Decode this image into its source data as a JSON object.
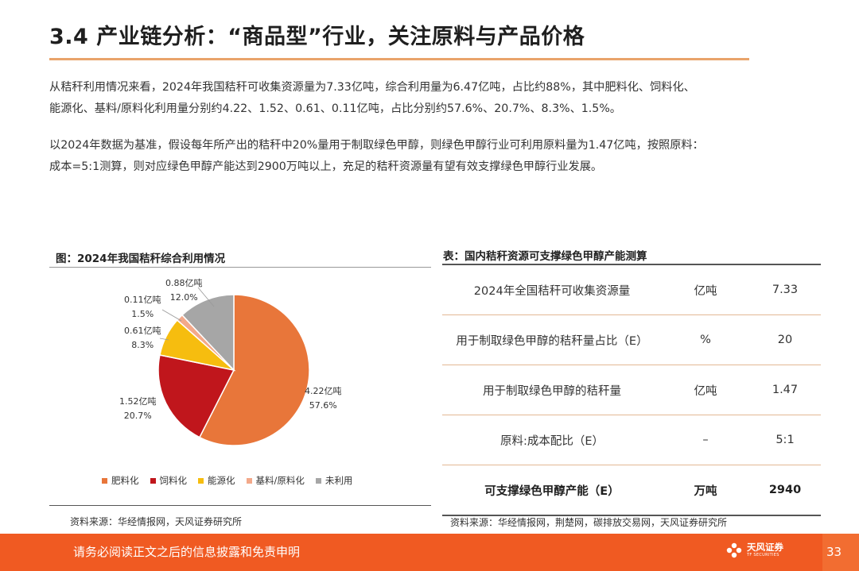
{
  "header": {
    "title": "3.4 产业链分析：“商品型”行业，关注原料与产品价格"
  },
  "body": {
    "paragraph1_line1": "从秸秆利用情况来看，2024年我国秸秆可收集资源量为7.33亿吨，综合利用量为6.47亿吨，占比约88%，其中肥料化、饲料化、",
    "paragraph1_line2": "能源化、基料/原料化利用量分别约4.22、1.52、0.61、0.11亿吨，占比分别约57.6%、20.7%、8.3%、1.5%。",
    "paragraph2_line1": "以2024年数据为基准，假设每年所产出的秸秆中20%量用于制取绿色甲醇，则绿色甲醇行业可利用原料量为1.47亿吨，按照原料：",
    "paragraph2_line2": "成本=5:1测算，则对应绿色甲醇产能达到2900万吨以上，充足的秸秆资源量有望有效支撑绿色甲醇行业发展。"
  },
  "chart": {
    "title": "图：2024年我国秸秆综合利用情况",
    "source": "资料来源：华经情报网，天风证券研究所"
  },
  "chart_data": {
    "type": "pie",
    "title": "图：2024年我国秸秆综合利用情况",
    "unit": "亿吨",
    "start_angle_deg": 0,
    "direction": "clockwise",
    "legend_position": "bottom",
    "slices": [
      {
        "name": "肥料化",
        "value": 4.22,
        "percent": 57.6,
        "color": "#e8763a",
        "value_label": "4.22亿吨",
        "percent_label": "57.6%"
      },
      {
        "name": "饲料化",
        "value": 1.52,
        "percent": 20.7,
        "color": "#c0161c",
        "value_label": "1.52亿吨",
        "percent_label": "20.7%"
      },
      {
        "name": "能源化",
        "value": 0.61,
        "percent": 8.3,
        "color": "#f6bd0f",
        "value_label": "0.61亿吨",
        "percent_label": "8.3%"
      },
      {
        "name": "基料/原料化",
        "value": 0.11,
        "percent": 1.5,
        "color": "#f3a98a",
        "value_label": "0.11亿吨",
        "percent_label": "1.5%"
      },
      {
        "name": "未利用",
        "value": 0.88,
        "percent": 12.0,
        "color": "#a6a6a6",
        "value_label": "0.88亿吨",
        "percent_label": "12.0%"
      }
    ]
  },
  "table": {
    "title": "表：国内秸秆资源可支撑绿色甲醇产能测算",
    "rows": [
      {
        "item": "2024年全国秸秆可收集资源量",
        "unit": "亿吨",
        "value": "7.33"
      },
      {
        "item": "用于制取绿色甲醇的秸秆量占比（E）",
        "unit": "%",
        "value": "20"
      },
      {
        "item": "用于制取绿色甲醇的秸秆量",
        "unit": "亿吨",
        "value": "1.47"
      },
      {
        "item": "原料:成本配比（E）",
        "unit": "–",
        "value": "5:1"
      },
      {
        "item": "可支撑绿色甲醇产能（E）",
        "unit": "万吨",
        "value": "2940"
      }
    ],
    "source": "资料来源：华经情报网，荆楚网，碳排放交易网，天风证券研究所"
  },
  "footer": {
    "disclaimer": "请务必阅读正文之后的信息披露和免责申明",
    "logo_name": "天风证券",
    "logo_sub": "TF SECURITIES",
    "page_number": "33",
    "color": "#f05a22"
  }
}
